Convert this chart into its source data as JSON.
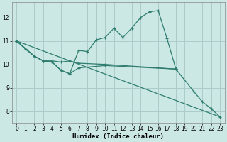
{
  "xlabel": "Humidex (Indice chaleur)",
  "background_color": "#cce8e5",
  "grid_color": "#aaccca",
  "line_color": "#2e7d6e",
  "xlim": [
    -0.5,
    23.5
  ],
  "ylim": [
    7.5,
    12.65
  ],
  "yticks": [
    8,
    9,
    10,
    11,
    12
  ],
  "xticks": [
    0,
    1,
    2,
    3,
    4,
    5,
    6,
    7,
    8,
    9,
    10,
    11,
    12,
    13,
    14,
    15,
    16,
    17,
    18,
    19,
    20,
    21,
    22,
    23
  ],
  "series1_x": [
    0,
    1,
    2,
    3,
    4,
    5,
    6,
    7,
    8,
    9,
    10,
    11,
    12,
    13,
    14,
    15,
    16,
    17,
    18
  ],
  "series1_y": [
    11.0,
    10.65,
    10.35,
    10.15,
    10.1,
    9.75,
    9.6,
    10.6,
    10.55,
    11.05,
    11.15,
    11.55,
    11.15,
    11.55,
    12.0,
    12.25,
    12.3,
    11.1,
    9.8
  ],
  "series2_x": [
    0,
    2,
    3,
    4,
    5,
    6,
    7,
    10,
    18
  ],
  "series2_y": [
    11.0,
    10.35,
    10.15,
    10.15,
    10.1,
    10.15,
    10.05,
    10.0,
    9.8
  ],
  "series3_x": [
    0,
    2,
    3,
    4,
    5,
    6,
    7,
    10,
    18,
    20,
    21,
    22,
    23
  ],
  "series3_y": [
    11.0,
    10.35,
    10.15,
    10.1,
    9.75,
    9.6,
    9.85,
    9.95,
    9.8,
    8.85,
    8.4,
    8.1,
    7.75
  ],
  "series4_x": [
    0,
    23
  ],
  "series4_y": [
    11.0,
    7.75
  ]
}
